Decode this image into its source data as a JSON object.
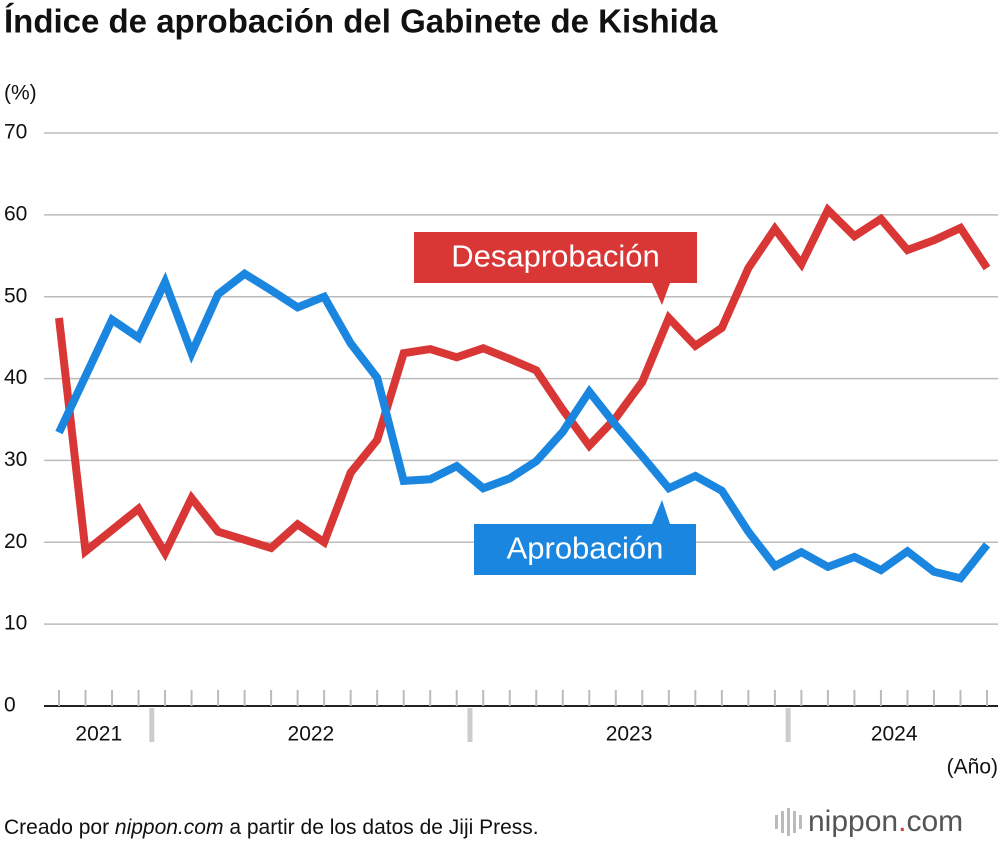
{
  "chart_data": {
    "type": "line",
    "title": "Índice de aprobación del Gabinete de Kishida",
    "y_unit": "(%)",
    "x_unit": "(Año)",
    "categories": [
      null,
      null,
      null,
      null,
      null,
      null,
      null,
      null,
      null,
      null,
      null,
      null,
      null,
      null,
      null,
      null,
      null,
      null,
      null,
      null,
      null,
      null,
      null,
      null,
      null,
      null,
      null,
      null,
      null,
      null,
      null,
      null,
      null,
      null,
      null,
      null
    ],
    "x_groups": [
      {
        "label": "2021",
        "start": 0,
        "end": 3
      },
      {
        "label": "2022",
        "start": 4,
        "end": 15
      },
      {
        "label": "2023",
        "start": 16,
        "end": 27
      },
      {
        "label": "2024",
        "start": 28,
        "end": 35
      }
    ],
    "series": [
      {
        "name": "Desaprobación",
        "color": "#d93636",
        "values": [
          47.4,
          18.9,
          21.5,
          24.1,
          18.7,
          25.4,
          21.3,
          20.3,
          19.3,
          22.2,
          20.0,
          28.5,
          32.5,
          43.1,
          43.6,
          42.6,
          43.7,
          42.4,
          41.0,
          36.2,
          31.8,
          35.2,
          39.6,
          47.4,
          44.0,
          46.2,
          53.5,
          58.3,
          54.0,
          60.6,
          57.4,
          59.5,
          55.7,
          56.9,
          58.4,
          53.5
        ]
      },
      {
        "name": "Aprobación",
        "color": "#1a86e0",
        "values": [
          33.4,
          40.3,
          47.2,
          45.0,
          51.8,
          43.1,
          50.3,
          52.8,
          50.8,
          48.7,
          50.0,
          44.3,
          40.1,
          27.5,
          27.7,
          29.3,
          26.6,
          27.8,
          29.9,
          33.5,
          38.4,
          34.3,
          30.5,
          26.6,
          28.1,
          26.3,
          21.3,
          17.1,
          18.8,
          17.0,
          18.2,
          16.6,
          18.9,
          16.4,
          15.6,
          19.7
        ]
      }
    ],
    "ylim": [
      0,
      70
    ],
    "yticks": [
      0,
      10,
      20,
      30,
      40,
      50,
      60,
      70
    ],
    "grid": true,
    "source": [
      "Creado por ",
      "nippon.com",
      " a partir de los datos de Jiji Press."
    ],
    "logo": [
      "nippon",
      ".",
      "com"
    ]
  }
}
